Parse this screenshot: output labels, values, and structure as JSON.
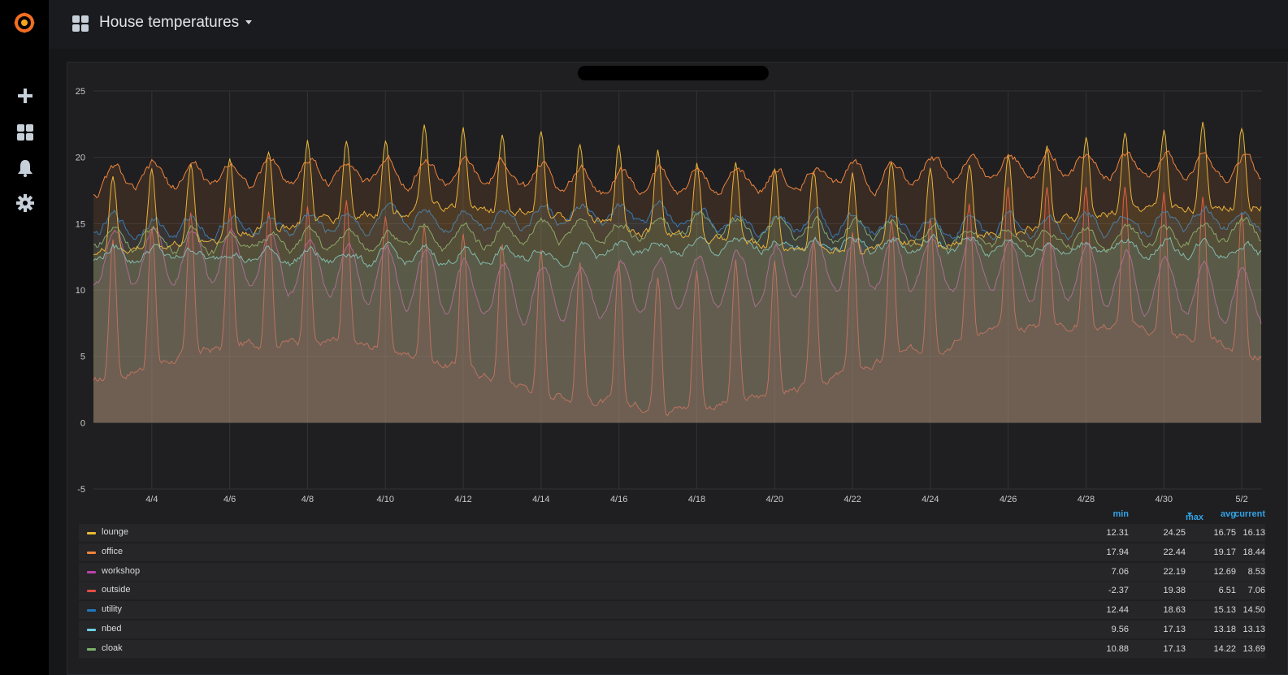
{
  "dashboard": {
    "title": "House temperatures"
  },
  "sidemenu": {
    "icons": [
      "grafana-logo",
      "plus-icon",
      "dashboards-icon",
      "alerting-bell-icon",
      "settings-gear-icon"
    ]
  },
  "colors": {
    "lounge": "#eab839",
    "office": "#ef843c",
    "workshop": "#ba43a9",
    "outside": "#e24d42",
    "utility": "#1f78c1",
    "nbed": "#6ed0e0",
    "cloak": "#7eb26d",
    "legend_header": "#33a2e5",
    "background": "#161719",
    "panel": "#1f1f21"
  },
  "legend": {
    "headers": {
      "min": "min",
      "max": "max",
      "avg": "avg",
      "current": "current"
    },
    "rows": [
      {
        "name": "lounge",
        "color": "#eab839",
        "min": "12.31",
        "max": "24.25",
        "avg": "16.75",
        "current": "16.13"
      },
      {
        "name": "office",
        "color": "#ef843c",
        "min": "17.94",
        "max": "22.44",
        "avg": "19.17",
        "current": "18.44"
      },
      {
        "name": "workshop",
        "color": "#ba43a9",
        "min": "7.06",
        "max": "22.19",
        "avg": "12.69",
        "current": "8.53"
      },
      {
        "name": "outside",
        "color": "#e24d42",
        "min": "-2.37",
        "max": "19.38",
        "avg": "6.51",
        "current": "7.06"
      },
      {
        "name": "utility",
        "color": "#1f78c1",
        "min": "12.44",
        "max": "18.63",
        "avg": "15.13",
        "current": "14.50"
      },
      {
        "name": "nbed",
        "color": "#6ed0e0",
        "min": "9.56",
        "max": "17.13",
        "avg": "13.18",
        "current": "13.13"
      },
      {
        "name": "cloak",
        "color": "#7eb26d",
        "min": "10.88",
        "max": "17.13",
        "avg": "14.22",
        "current": "13.69"
      }
    ]
  },
  "chart_data": {
    "type": "area",
    "x_range": [
      "4/2",
      "5/2"
    ],
    "ylim": [
      -5,
      25
    ],
    "yticks": [
      "25",
      "20",
      "15",
      "10",
      "5",
      "0",
      "-5"
    ],
    "xticks": [
      "4/4",
      "4/6",
      "4/8",
      "4/10",
      "4/12",
      "4/14",
      "4/16",
      "4/18",
      "4/20",
      "4/22",
      "4/24",
      "4/26",
      "4/28",
      "4/30",
      "5/2"
    ],
    "grid": true,
    "legend_placement": "bottom-table",
    "series": [
      {
        "name": "lounge",
        "base": 15.5,
        "trend": 0.5,
        "amp": 4.5,
        "spike": true
      },
      {
        "name": "office",
        "base": 18.3,
        "trend": 0.8,
        "amp": 1.5,
        "spike": false
      },
      {
        "name": "workshop",
        "base": 11.5,
        "trend": -1.0,
        "amp": 3.5,
        "spike": false
      },
      {
        "name": "outside",
        "base": 5.0,
        "trend": 2.0,
        "amp": 8.0,
        "spike": true
      },
      {
        "name": "utility",
        "base": 15.2,
        "trend": 0.0,
        "amp": 1.2,
        "spike": false
      },
      {
        "name": "nbed",
        "base": 12.5,
        "trend": 1.0,
        "amp": 0.8,
        "spike": false
      },
      {
        "name": "cloak",
        "base": 14.0,
        "trend": 0.5,
        "amp": 1.2,
        "spike": false
      }
    ]
  }
}
